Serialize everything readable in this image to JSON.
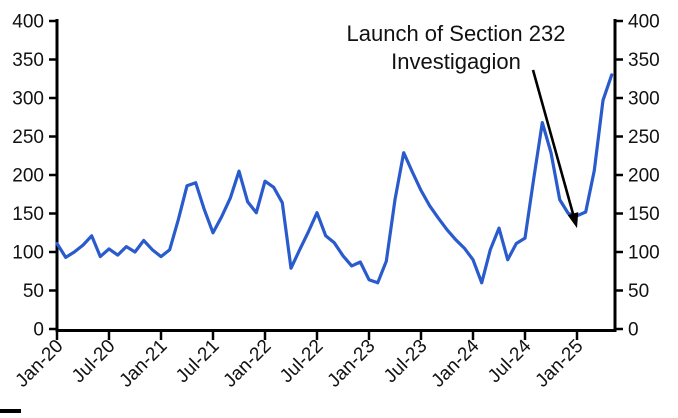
{
  "chart_data": {
    "type": "line",
    "title": "",
    "xlabel": "",
    "ylabel": "",
    "ylim": [
      0,
      400
    ],
    "ytick_interval": 50,
    "grid": false,
    "y_axis_sides": "left and right",
    "y_tick_labels": [
      "0",
      "50",
      "100",
      "150",
      "200",
      "250",
      "300",
      "350",
      "400"
    ],
    "x_tick_labels": [
      "Jan-20",
      "Jul-20",
      "Jan-21",
      "Jul-21",
      "Jan-22",
      "Jul-22",
      "Jan-23",
      "Jul-23",
      "Jan-24",
      "Jul-24",
      "Jan-25"
    ],
    "x": [
      "Jan-20",
      "Feb-20",
      "Mar-20",
      "Apr-20",
      "May-20",
      "Jun-20",
      "Jul-20",
      "Aug-20",
      "Sep-20",
      "Oct-20",
      "Nov-20",
      "Dec-20",
      "Jan-21",
      "Feb-21",
      "Mar-21",
      "Apr-21",
      "May-21",
      "Jun-21",
      "Jul-21",
      "Aug-21",
      "Sep-21",
      "Oct-21",
      "Nov-21",
      "Dec-21",
      "Jan-22",
      "Feb-22",
      "Mar-22",
      "Apr-22",
      "May-22",
      "Jun-22",
      "Jul-22",
      "Aug-22",
      "Sep-22",
      "Oct-22",
      "Nov-22",
      "Dec-22",
      "Jan-23",
      "Feb-23",
      "Mar-23",
      "Apr-23",
      "May-23",
      "Jun-23",
      "Jul-23",
      "Aug-23",
      "Sep-23",
      "Oct-23",
      "Nov-23",
      "Dec-23",
      "Jan-24",
      "Feb-24",
      "Mar-24",
      "Apr-24",
      "May-24",
      "Jun-24",
      "Jul-24",
      "Aug-24",
      "Sep-24",
      "Oct-24",
      "Nov-24",
      "Dec-24",
      "Jan-25",
      "Feb-25",
      "Mar-25",
      "Apr-25",
      "May-25"
    ],
    "series": [
      {
        "name": "monthly-series",
        "color": "#2a5bcd",
        "values": [
          111,
          93,
          100,
          109,
          121,
          94,
          104,
          96,
          107,
          100,
          115,
          103,
          94,
          103,
          142,
          186,
          190,
          155,
          125,
          146,
          170,
          205,
          165,
          151,
          192,
          184,
          164,
          79,
          103,
          126,
          151,
          121,
          112,
          95,
          82,
          87,
          64,
          60,
          88,
          168,
          229,
          204,
          180,
          160,
          144,
          129,
          116,
          105,
          90,
          60,
          103,
          131,
          90,
          111,
          118,
          195,
          268,
          229,
          168,
          150,
          147,
          152,
          206,
          297,
          330
        ]
      }
    ],
    "annotation": {
      "lines": [
        "Launch of Section 232",
        "Investigagion"
      ],
      "arrow_points_to": {
        "x": "Jan-25",
        "value": 170
      }
    }
  },
  "colors": {
    "axis": "#000000",
    "text": "#111111"
  }
}
